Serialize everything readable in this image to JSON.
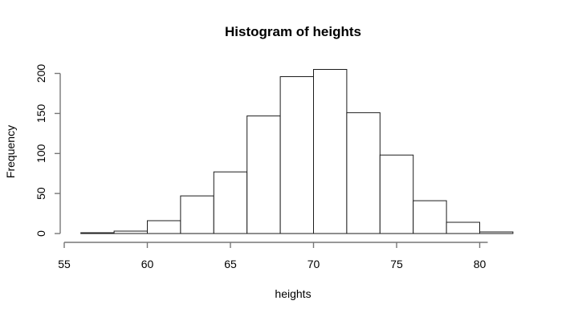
{
  "figure": {
    "background": "#ffffff"
  },
  "chart_data": {
    "type": "bar",
    "subtype": "histogram",
    "title": "Histogram of heights",
    "xlabel": "heights",
    "ylabel": "Frequency",
    "bin_edges": [
      56,
      58,
      60,
      62,
      64,
      66,
      68,
      70,
      72,
      74,
      76,
      78,
      80,
      82
    ],
    "frequencies": [
      1,
      3,
      16,
      47,
      77,
      147,
      196,
      205,
      151,
      98,
      41,
      14,
      2
    ],
    "x_ticks": [
      55,
      60,
      65,
      70,
      75,
      80
    ],
    "y_ticks": [
      0,
      50,
      100,
      150,
      200
    ],
    "xlim": [
      55,
      82
    ],
    "ylim": [
      0,
      205
    ],
    "grid": false,
    "legend": "none",
    "bar_fill": "#ffffff",
    "bar_stroke": "#1c1c1c",
    "axis_color": "#777777",
    "text_color": "#000000",
    "background": "#ffffff"
  }
}
